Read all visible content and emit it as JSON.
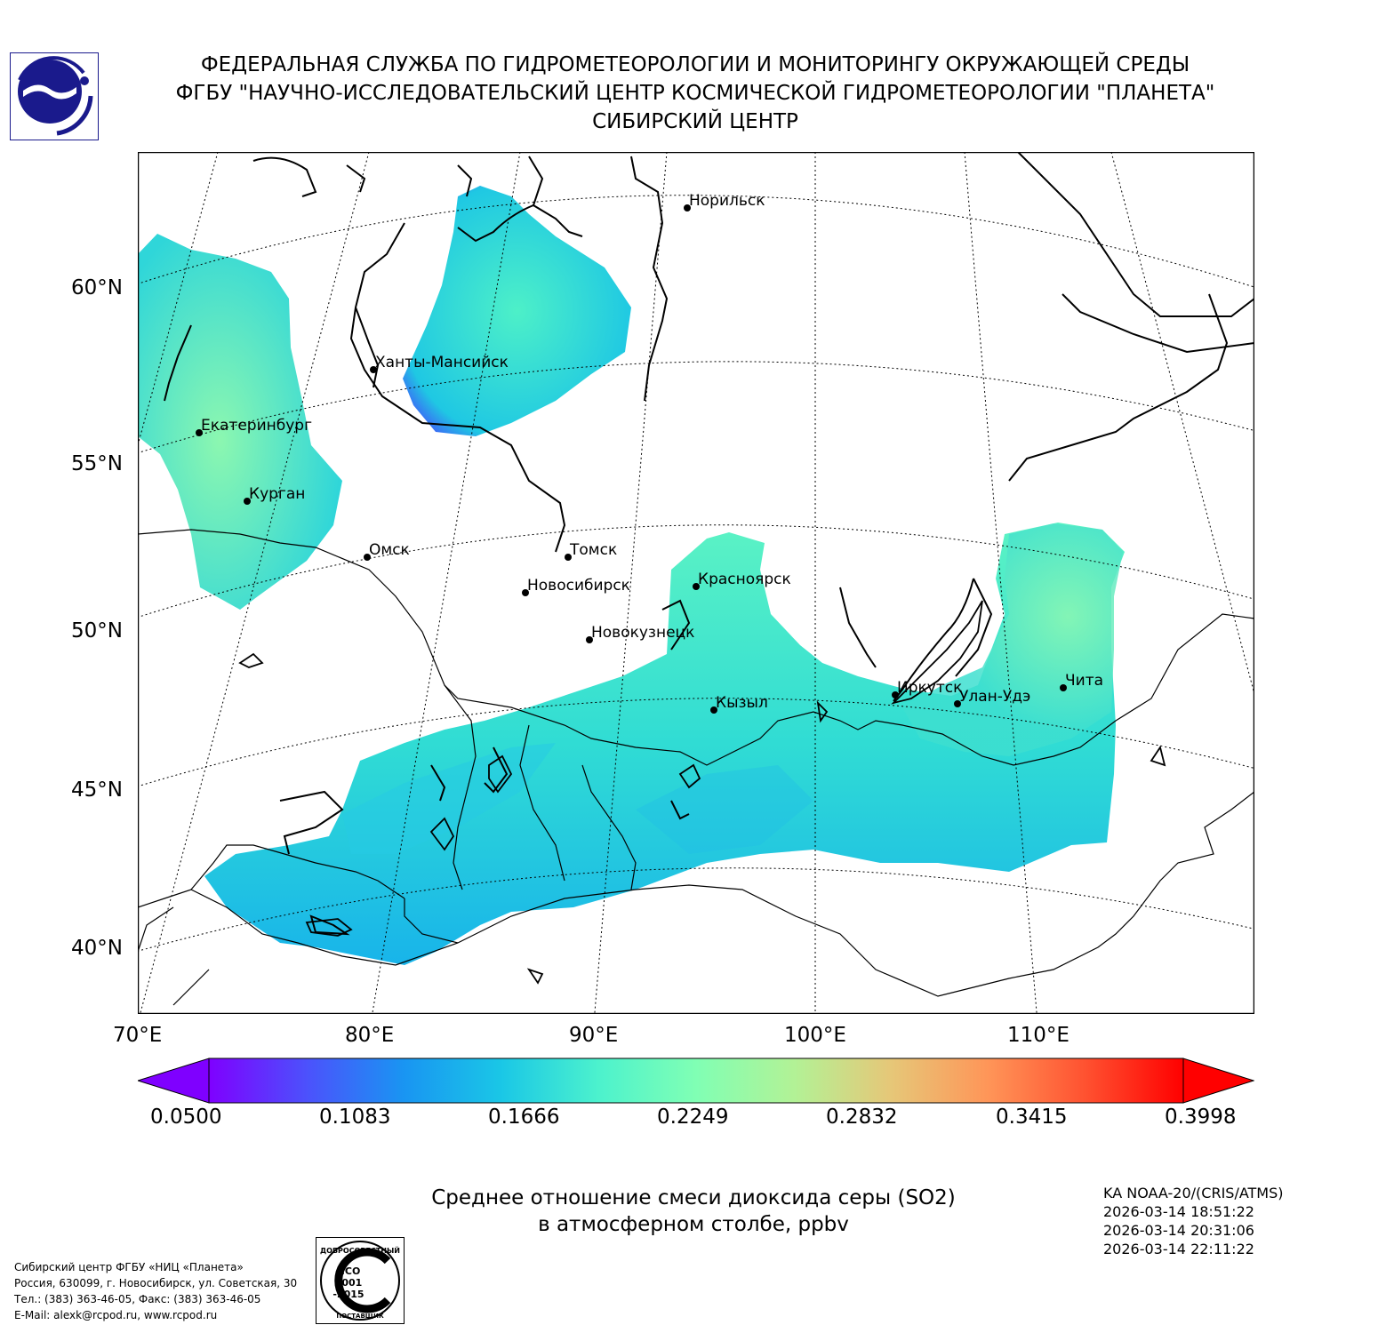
{
  "header": {
    "line1": "ФЕДЕРАЛЬНАЯ СЛУЖБА ПО ГИДРОМЕТЕОРОЛОГИИ И МОНИТОРИНГУ ОКРУЖАЮЩЕЙ СРЕДЫ",
    "line2": "ФГБУ \"НАУЧНО-ИССЛЕДОВАТЕЛЬСКИЙ ЦЕНТР КОСМИЧЕСКОЙ ГИДРОМЕТЕОРОЛОГИИ \"ПЛАНЕТА\"",
    "line3": "СИБИРСКИЙ ЦЕНТР"
  },
  "map": {
    "lat_labels": [
      "60°N",
      "55°N",
      "50°N",
      "45°N",
      "40°N"
    ],
    "lon_labels": [
      "70°E",
      "80°E",
      "90°E",
      "100°E",
      "110°E"
    ],
    "cities": [
      {
        "name": "Норильск"
      },
      {
        "name": "Ханты-Мансийск"
      },
      {
        "name": "Екатеринбург"
      },
      {
        "name": "Курган"
      },
      {
        "name": "Омск"
      },
      {
        "name": "Томск"
      },
      {
        "name": "Новосибирск"
      },
      {
        "name": "Красноярск"
      },
      {
        "name": "Новокузнецк"
      },
      {
        "name": "Кызыл"
      },
      {
        "name": "Иркутск"
      },
      {
        "name": "Улан-Удэ"
      },
      {
        "name": "Чита"
      }
    ]
  },
  "colorbar": {
    "ticks": [
      "0.0500",
      "0.1083",
      "0.1666",
      "0.2249",
      "0.2832",
      "0.3415",
      "0.3998"
    ],
    "min": 0.05,
    "max": 0.3998,
    "colors": [
      "#7f00ff",
      "#4c51fc",
      "#1995f2",
      "#1ac7e6",
      "#4cf2cd",
      "#80ffb4",
      "#b2f296",
      "#e6c778",
      "#ff9558",
      "#ff5130",
      "#ff0000"
    ]
  },
  "caption": {
    "line1": "Среднее отношение смеси диоксида серы (SO2)",
    "line2": "в атмосферном столбе, ppbv"
  },
  "satellite": {
    "name": "KA NOAA-20/(CRIS/ATMS)",
    "times": [
      "2026-03-14 18:51:22",
      "2026-03-14 20:31:06",
      "2026-03-14 22:11:22"
    ]
  },
  "contact": {
    "org": "Сибирский центр ФГБУ «НИЦ «Планета»",
    "address": "Россия, 630099, г. Новосибирск, ул. Советская, 30",
    "phone": "Тел.: (383) 363-46-05, Факс: (383) 363-46-05",
    "email": "E-Mail: alexk@rcpod.ru, www.rcpod.ru"
  },
  "iso_badge": {
    "top_text": "ДОБРОСОВЕСТНЫЙ",
    "line1": "ИСО",
    "line2": "9001",
    "line3": "-2015",
    "bottom_text": "ПОСТАВЩИК"
  }
}
